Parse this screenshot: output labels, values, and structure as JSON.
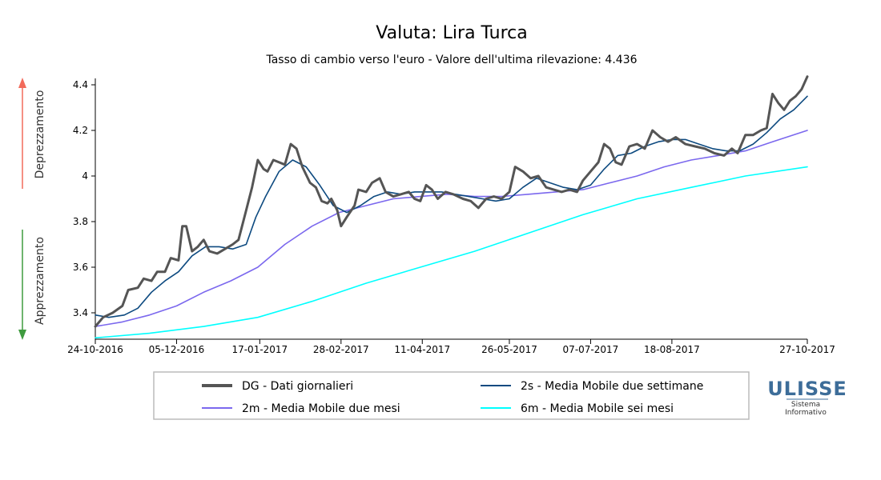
{
  "chart_data": {
    "type": "line",
    "title": "Valuta: Lira Turca",
    "subtitle": "Tasso di cambio verso l'euro - Valore dell'ultima rilevazione: 4.436",
    "xlabel": "",
    "ylabel": "",
    "ylim": [
      3.29,
      4.45
    ],
    "yticks": [
      "3.4",
      "3.6",
      "3.8",
      "4",
      "4.2",
      "4.4"
    ],
    "xticks": [
      "24-10-2016",
      "05-12-2016",
      "17-01-2017",
      "28-02-2017",
      "11-04-2017",
      "26-05-2017",
      "07-07-2017",
      "18-08-2017",
      "27-10-2017"
    ],
    "side_labels": {
      "up": "Deprezzamento",
      "down": "Apprezzamento"
    },
    "grid": false,
    "legend_position": "bottom",
    "series": [
      {
        "name": "DG - Dati giornalieri",
        "color": "#555555",
        "width": 3,
        "points": [
          [
            "2016-10-24",
            3.34
          ],
          [
            "2016-10-28",
            3.38
          ],
          [
            "2016-11-02",
            3.4
          ],
          [
            "2016-11-07",
            3.43
          ],
          [
            "2016-11-10",
            3.5
          ],
          [
            "2016-11-15",
            3.51
          ],
          [
            "2016-11-18",
            3.55
          ],
          [
            "2016-11-22",
            3.54
          ],
          [
            "2016-11-25",
            3.58
          ],
          [
            "2016-11-29",
            3.58
          ],
          [
            "2016-12-02",
            3.64
          ],
          [
            "2016-12-06",
            3.63
          ],
          [
            "2016-12-08",
            3.78
          ],
          [
            "2016-12-10",
            3.78
          ],
          [
            "2016-12-13",
            3.67
          ],
          [
            "2016-12-16",
            3.69
          ],
          [
            "2016-12-19",
            3.72
          ],
          [
            "2016-12-22",
            3.67
          ],
          [
            "2016-12-26",
            3.66
          ],
          [
            "2016-12-30",
            3.68
          ],
          [
            "2017-01-03",
            3.7
          ],
          [
            "2017-01-06",
            3.72
          ],
          [
            "2017-01-10",
            3.85
          ],
          [
            "2017-01-13",
            3.95
          ],
          [
            "2017-01-16",
            4.07
          ],
          [
            "2017-01-19",
            4.03
          ],
          [
            "2017-01-21",
            4.02
          ],
          [
            "2017-01-24",
            4.07
          ],
          [
            "2017-01-27",
            4.06
          ],
          [
            "2017-01-30",
            4.05
          ],
          [
            "2017-02-02",
            4.14
          ],
          [
            "2017-02-05",
            4.12
          ],
          [
            "2017-02-08",
            4.04
          ],
          [
            "2017-02-12",
            3.97
          ],
          [
            "2017-02-15",
            3.95
          ],
          [
            "2017-02-18",
            3.89
          ],
          [
            "2017-02-21",
            3.88
          ],
          [
            "2017-02-23",
            3.9
          ],
          [
            "2017-02-26",
            3.85
          ],
          [
            "2017-02-28",
            3.78
          ],
          [
            "2017-03-03",
            3.82
          ],
          [
            "2017-03-07",
            3.87
          ],
          [
            "2017-03-09",
            3.94
          ],
          [
            "2017-03-13",
            3.93
          ],
          [
            "2017-03-16",
            3.97
          ],
          [
            "2017-03-20",
            3.99
          ],
          [
            "2017-03-23",
            3.93
          ],
          [
            "2017-03-27",
            3.91
          ],
          [
            "2017-03-31",
            3.92
          ],
          [
            "2017-04-04",
            3.93
          ],
          [
            "2017-04-07",
            3.9
          ],
          [
            "2017-04-10",
            3.89
          ],
          [
            "2017-04-13",
            3.96
          ],
          [
            "2017-04-16",
            3.94
          ],
          [
            "2017-04-19",
            3.9
          ],
          [
            "2017-04-23",
            3.93
          ],
          [
            "2017-04-27",
            3.92
          ],
          [
            "2017-05-02",
            3.9
          ],
          [
            "2017-05-06",
            3.89
          ],
          [
            "2017-05-10",
            3.86
          ],
          [
            "2017-05-14",
            3.9
          ],
          [
            "2017-05-18",
            3.91
          ],
          [
            "2017-05-22",
            3.9
          ],
          [
            "2017-05-26",
            3.93
          ],
          [
            "2017-05-29",
            4.04
          ],
          [
            "2017-06-02",
            4.02
          ],
          [
            "2017-06-06",
            3.99
          ],
          [
            "2017-06-10",
            4.0
          ],
          [
            "2017-06-14",
            3.95
          ],
          [
            "2017-06-18",
            3.94
          ],
          [
            "2017-06-22",
            3.93
          ],
          [
            "2017-06-26",
            3.94
          ],
          [
            "2017-06-30",
            3.93
          ],
          [
            "2017-07-03",
            3.98
          ],
          [
            "2017-07-07",
            4.02
          ],
          [
            "2017-07-11",
            4.06
          ],
          [
            "2017-07-14",
            4.14
          ],
          [
            "2017-07-17",
            4.12
          ],
          [
            "2017-07-20",
            4.06
          ],
          [
            "2017-07-23",
            4.05
          ],
          [
            "2017-07-27",
            4.13
          ],
          [
            "2017-07-31",
            4.14
          ],
          [
            "2017-08-04",
            4.12
          ],
          [
            "2017-08-08",
            4.2
          ],
          [
            "2017-08-12",
            4.17
          ],
          [
            "2017-08-16",
            4.15
          ],
          [
            "2017-08-20",
            4.17
          ],
          [
            "2017-08-25",
            4.14
          ],
          [
            "2017-08-30",
            4.13
          ],
          [
            "2017-09-04",
            4.12
          ],
          [
            "2017-09-09",
            4.1
          ],
          [
            "2017-09-14",
            4.09
          ],
          [
            "2017-09-18",
            4.12
          ],
          [
            "2017-09-21",
            4.1
          ],
          [
            "2017-09-25",
            4.18
          ],
          [
            "2017-09-29",
            4.18
          ],
          [
            "2017-10-03",
            4.2
          ],
          [
            "2017-10-06",
            4.21
          ],
          [
            "2017-10-09",
            4.36
          ],
          [
            "2017-10-12",
            4.32
          ],
          [
            "2017-10-15",
            4.29
          ],
          [
            "2017-10-18",
            4.33
          ],
          [
            "2017-10-21",
            4.35
          ],
          [
            "2017-10-24",
            4.38
          ],
          [
            "2017-10-27",
            4.436
          ]
        ]
      },
      {
        "name": "2s - Media Mobile due settimane",
        "color": "#0d4a80",
        "width": 1.6,
        "points": [
          [
            "2016-10-24",
            3.39
          ],
          [
            "2016-10-31",
            3.38
          ],
          [
            "2016-11-08",
            3.39
          ],
          [
            "2016-11-15",
            3.42
          ],
          [
            "2016-11-22",
            3.49
          ],
          [
            "2016-11-29",
            3.54
          ],
          [
            "2016-12-06",
            3.58
          ],
          [
            "2016-12-13",
            3.65
          ],
          [
            "2016-12-20",
            3.69
          ],
          [
            "2016-12-27",
            3.69
          ],
          [
            "2017-01-03",
            3.68
          ],
          [
            "2017-01-10",
            3.7
          ],
          [
            "2017-01-15",
            3.82
          ],
          [
            "2017-01-20",
            3.91
          ],
          [
            "2017-01-27",
            4.02
          ],
          [
            "2017-02-03",
            4.07
          ],
          [
            "2017-02-10",
            4.04
          ],
          [
            "2017-02-17",
            3.96
          ],
          [
            "2017-02-24",
            3.87
          ],
          [
            "2017-03-03",
            3.84
          ],
          [
            "2017-03-10",
            3.87
          ],
          [
            "2017-03-17",
            3.91
          ],
          [
            "2017-03-24",
            3.93
          ],
          [
            "2017-03-31",
            3.92
          ],
          [
            "2017-04-07",
            3.93
          ],
          [
            "2017-04-14",
            3.93
          ],
          [
            "2017-04-21",
            3.93
          ],
          [
            "2017-04-28",
            3.92
          ],
          [
            "2017-05-05",
            3.91
          ],
          [
            "2017-05-12",
            3.9
          ],
          [
            "2017-05-19",
            3.89
          ],
          [
            "2017-05-26",
            3.9
          ],
          [
            "2017-06-02",
            3.95
          ],
          [
            "2017-06-09",
            3.99
          ],
          [
            "2017-06-16",
            3.97
          ],
          [
            "2017-06-23",
            3.95
          ],
          [
            "2017-06-30",
            3.94
          ],
          [
            "2017-07-07",
            3.96
          ],
          [
            "2017-07-14",
            4.03
          ],
          [
            "2017-07-21",
            4.09
          ],
          [
            "2017-07-28",
            4.1
          ],
          [
            "2017-08-04",
            4.13
          ],
          [
            "2017-08-11",
            4.15
          ],
          [
            "2017-08-18",
            4.16
          ],
          [
            "2017-08-25",
            4.16
          ],
          [
            "2017-09-01",
            4.14
          ],
          [
            "2017-09-08",
            4.12
          ],
          [
            "2017-09-15",
            4.11
          ],
          [
            "2017-09-22",
            4.11
          ],
          [
            "2017-09-29",
            4.14
          ],
          [
            "2017-10-06",
            4.19
          ],
          [
            "2017-10-13",
            4.25
          ],
          [
            "2017-10-20",
            4.29
          ],
          [
            "2017-10-27",
            4.35
          ]
        ]
      },
      {
        "name": "2m - Media Mobile due mesi",
        "color": "#7b68ee",
        "width": 1.6,
        "points": [
          [
            "2016-10-24",
            3.34
          ],
          [
            "2016-11-07",
            3.36
          ],
          [
            "2016-11-21",
            3.39
          ],
          [
            "2016-12-05",
            3.43
          ],
          [
            "2016-12-19",
            3.49
          ],
          [
            "2017-01-02",
            3.54
          ],
          [
            "2017-01-16",
            3.6
          ],
          [
            "2017-01-30",
            3.7
          ],
          [
            "2017-02-13",
            3.78
          ],
          [
            "2017-02-27",
            3.84
          ],
          [
            "2017-03-13",
            3.87
          ],
          [
            "2017-03-27",
            3.9
          ],
          [
            "2017-04-10",
            3.91
          ],
          [
            "2017-04-24",
            3.92
          ],
          [
            "2017-05-08",
            3.91
          ],
          [
            "2017-05-22",
            3.91
          ],
          [
            "2017-06-05",
            3.92
          ],
          [
            "2017-06-19",
            3.93
          ],
          [
            "2017-07-03",
            3.94
          ],
          [
            "2017-07-17",
            3.97
          ],
          [
            "2017-07-31",
            4.0
          ],
          [
            "2017-08-14",
            4.04
          ],
          [
            "2017-08-28",
            4.07
          ],
          [
            "2017-09-11",
            4.09
          ],
          [
            "2017-09-25",
            4.11
          ],
          [
            "2017-10-09",
            4.15
          ],
          [
            "2017-10-27",
            4.2
          ]
        ]
      },
      {
        "name": "6m - Media Mobile sei mesi",
        "color": "#00ffff",
        "width": 1.6,
        "points": [
          [
            "2016-10-24",
            3.29
          ],
          [
            "2016-11-21",
            3.31
          ],
          [
            "2016-12-19",
            3.34
          ],
          [
            "2017-01-16",
            3.38
          ],
          [
            "2017-02-13",
            3.45
          ],
          [
            "2017-03-13",
            3.53
          ],
          [
            "2017-04-10",
            3.6
          ],
          [
            "2017-05-08",
            3.67
          ],
          [
            "2017-06-05",
            3.75
          ],
          [
            "2017-07-03",
            3.83
          ],
          [
            "2017-07-31",
            3.9
          ],
          [
            "2017-08-28",
            3.95
          ],
          [
            "2017-09-25",
            4.0
          ],
          [
            "2017-10-27",
            4.04
          ]
        ]
      }
    ]
  },
  "logo": {
    "name": "ULISSE",
    "line1": "Sistema",
    "line2": "Informativo"
  },
  "colors": {
    "arrow_up": "#f26b5b",
    "arrow_down": "#3f9b3f",
    "axis": "#000000"
  }
}
